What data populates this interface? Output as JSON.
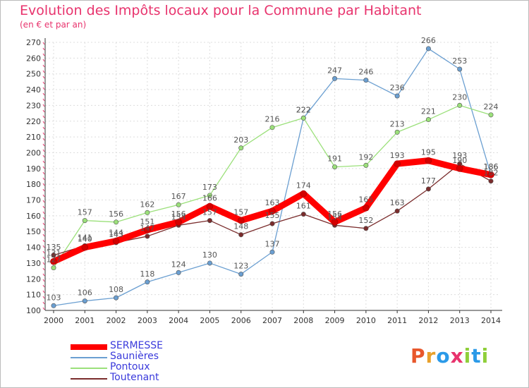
{
  "title": "Evolution des Impôts locaux pour la Commune par Habitant",
  "subtitle": "(en € et par an)",
  "logo": {
    "text": "Proxiti",
    "colors": [
      "#e8572b",
      "#e8a12b",
      "#2b9ae8",
      "#e8336d",
      "#8fcf3a",
      "#2b9ae8",
      "#8fcf3a"
    ]
  },
  "chart_data": {
    "type": "line",
    "x": [
      "2000",
      "2001",
      "2002",
      "2003",
      "2004",
      "2005",
      "2006",
      "2007",
      "2008",
      "2009",
      "2010",
      "2011",
      "2012",
      "2013",
      "2014"
    ],
    "ylim": [
      100,
      270
    ],
    "yticks": [
      "100",
      "110",
      "120",
      "130",
      "140",
      "150",
      "160",
      "170",
      "180",
      "190",
      "200",
      "210",
      "220",
      "230",
      "240",
      "250",
      "260",
      "270"
    ],
    "grid": true,
    "legend_position": "bottom-left",
    "series": [
      {
        "name": "SERMESSE",
        "color": "#ff0000",
        "values": [
          131,
          140,
          144,
          151,
          156,
          166,
          157,
          163,
          174,
          156,
          165,
          193,
          195,
          190,
          186
        ]
      },
      {
        "name": "Saunières",
        "color": "#6b9fd1",
        "values": [
          103,
          106,
          108,
          118,
          124,
          130,
          123,
          137,
          222,
          247,
          246,
          236,
          266,
          253,
          186
        ]
      },
      {
        "name": "Pontoux",
        "color": "#9be07a",
        "values": [
          127,
          157,
          156,
          162,
          167,
          173,
          203,
          216,
          222,
          191,
          192,
          213,
          221,
          230,
          224
        ]
      },
      {
        "name": "Toutenant",
        "color": "#7a2c2c",
        "values": [
          135,
          141,
          143,
          147,
          154,
          157,
          148,
          155,
          161,
          154,
          152,
          163,
          177,
          193,
          182
        ]
      }
    ]
  }
}
